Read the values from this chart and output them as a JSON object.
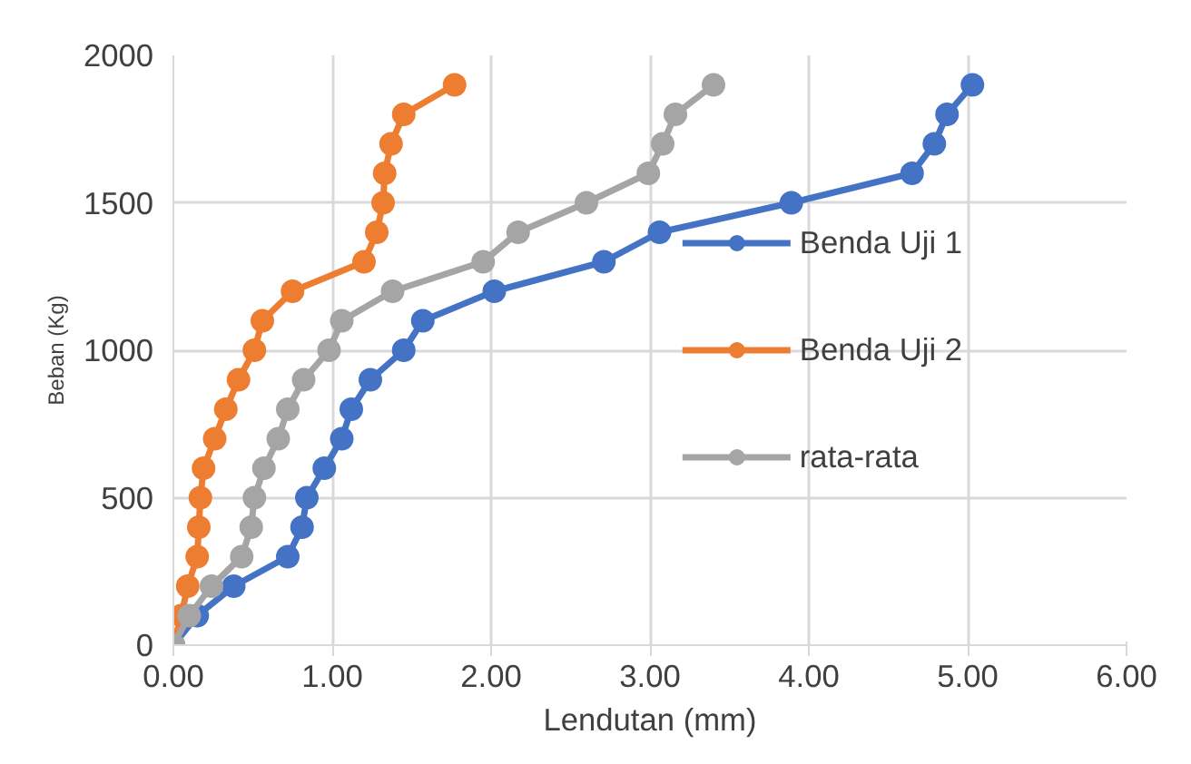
{
  "chart_data": {
    "type": "line",
    "xlabel": "Lendutan (mm)",
    "ylabel": "Beban (Kg)",
    "xlim": [
      0,
      6
    ],
    "ylim": [
      0,
      2000
    ],
    "xticks": [
      {
        "value": 0,
        "label": "0.00"
      },
      {
        "value": 1,
        "label": "1.00"
      },
      {
        "value": 2,
        "label": "2.00"
      },
      {
        "value": 3,
        "label": "3.00"
      },
      {
        "value": 4,
        "label": "4.00"
      },
      {
        "value": 5,
        "label": "5.00"
      },
      {
        "value": 6,
        "label": "6.00"
      }
    ],
    "yticks": [
      0,
      500,
      1000,
      1500,
      2000
    ],
    "grid": true,
    "legend": "right",
    "marker": "circle",
    "line_style": "solid",
    "series": [
      {
        "name": "Benda Uji 1",
        "color": "#4472c4",
        "x": [
          0,
          0.15,
          0.38,
          0.72,
          0.81,
          0.84,
          0.95,
          1.06,
          1.12,
          1.24,
          1.45,
          1.57,
          2.02,
          2.71,
          3.06,
          3.89,
          4.65,
          4.79,
          4.87,
          5.03
        ],
        "values": [
          0,
          100,
          200,
          300,
          400,
          500,
          600,
          700,
          800,
          900,
          1000,
          1100,
          1200,
          1300,
          1400,
          1500,
          1600,
          1700,
          1800,
          1900
        ]
      },
      {
        "name": "Benda Uji 2",
        "color": "#ed7d31",
        "x": [
          0,
          0.05,
          0.09,
          0.15,
          0.16,
          0.17,
          0.19,
          0.26,
          0.33,
          0.41,
          0.51,
          0.56,
          0.75,
          1.2,
          1.28,
          1.32,
          1.33,
          1.37,
          1.45,
          1.77
        ],
        "values": [
          0,
          100,
          200,
          300,
          400,
          500,
          600,
          700,
          800,
          900,
          1000,
          1100,
          1200,
          1300,
          1400,
          1500,
          1600,
          1700,
          1800,
          1900
        ]
      },
      {
        "name": "rata-rata",
        "color": "#a5a5a5",
        "x": [
          0,
          0.1,
          0.24,
          0.43,
          0.49,
          0.51,
          0.57,
          0.66,
          0.72,
          0.82,
          0.98,
          1.06,
          1.38,
          1.95,
          2.17,
          2.6,
          2.99,
          3.08,
          3.16,
          3.4
        ],
        "values": [
          0,
          100,
          200,
          300,
          400,
          500,
          600,
          700,
          800,
          900,
          1000,
          1100,
          1200,
          1300,
          1400,
          1500,
          1600,
          1700,
          1800,
          1900
        ]
      }
    ]
  }
}
